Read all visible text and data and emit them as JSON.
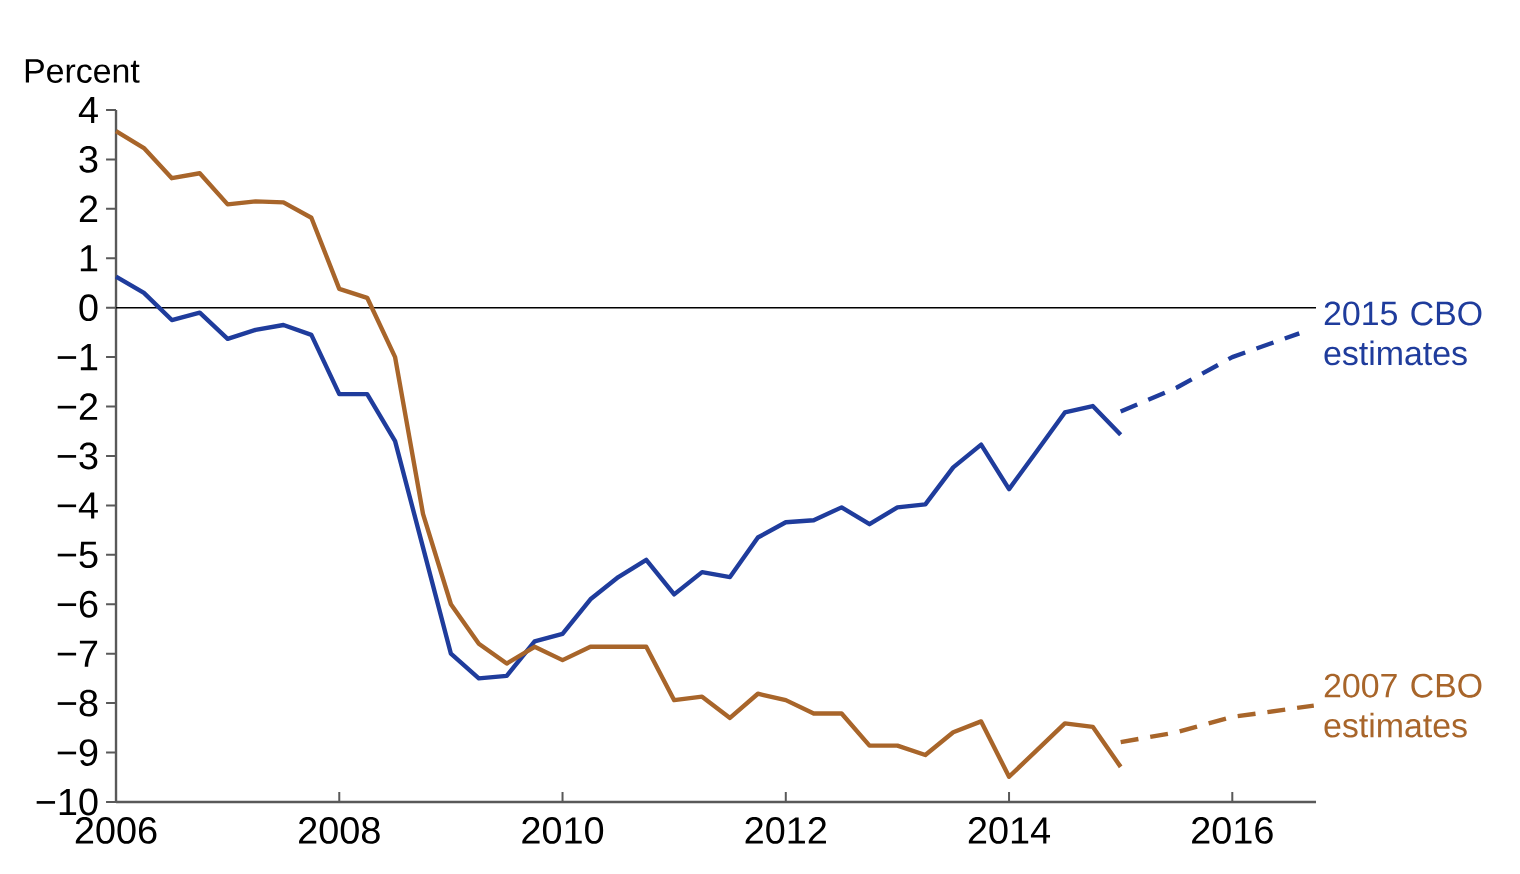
{
  "chart_data": {
    "type": "line",
    "ylabel": "Percent",
    "xlim": [
      2006,
      2016.75
    ],
    "ylim": [
      -10,
      4
    ],
    "xticks": [
      2006,
      2008,
      2010,
      2012,
      2014,
      2016
    ],
    "yticks": [
      {
        "value": -10,
        "label": "−10"
      },
      {
        "value": -9,
        "label": "−9"
      },
      {
        "value": -8,
        "label": "−8"
      },
      {
        "value": -7,
        "label": "−7"
      },
      {
        "value": -6,
        "label": "−6"
      },
      {
        "value": -5,
        "label": "−5"
      },
      {
        "value": -4,
        "label": "−4"
      },
      {
        "value": -3,
        "label": "−3"
      },
      {
        "value": -2,
        "label": "−2"
      },
      {
        "value": -1,
        "label": "−1"
      },
      0,
      1,
      2,
      3,
      4
    ],
    "grid": false,
    "marker": "none",
    "ref_lines": [
      {
        "axis": "y",
        "value": 0,
        "color": "#000000"
      }
    ],
    "series": [
      {
        "name": "2015 CBO estimates",
        "color": "#1f3c9c",
        "line_style": "solid",
        "x": [
          2006.0,
          2006.25,
          2006.5,
          2006.75,
          2007.0,
          2007.25,
          2007.5,
          2007.75,
          2008.0,
          2008.25,
          2008.5,
          2008.75,
          2009.0,
          2009.25,
          2009.5,
          2009.75,
          2010.0,
          2010.25,
          2010.5,
          2010.75,
          2011.0,
          2011.25,
          2011.5,
          2011.75,
          2012.0,
          2012.25,
          2012.5,
          2012.75,
          2013.0,
          2013.25,
          2013.5,
          2013.75,
          2014.0,
          2014.25,
          2014.5,
          2014.75,
          2015.0
        ],
        "values": [
          0.63,
          0.3,
          -0.25,
          -0.1,
          -0.63,
          -0.45,
          -0.35,
          -0.55,
          -1.75,
          -1.75,
          -2.7,
          -4.85,
          -7.0,
          -7.5,
          -7.45,
          -6.75,
          -6.6,
          -5.9,
          -5.45,
          -5.1,
          -5.8,
          -5.35,
          -5.45,
          -4.65,
          -4.34,
          -4.3,
          -4.04,
          -4.38,
          -4.04,
          -3.98,
          -3.23,
          -2.77,
          -3.67,
          -2.9,
          -2.12,
          -1.99,
          -2.57
        ]
      },
      {
        "color": "#1f3c9c",
        "line_style": "dashed",
        "x": [
          2015.0,
          2015.5,
          2016.0,
          2016.6
        ],
        "values": [
          -2.1,
          -1.62,
          -1.0,
          -0.52
        ]
      },
      {
        "name": "2007 CBO estimates",
        "color": "#a8652a",
        "line_style": "solid",
        "x": [
          2006.0,
          2006.25,
          2006.5,
          2006.75,
          2007.0,
          2007.25,
          2007.5,
          2007.75,
          2008.0,
          2008.25,
          2008.5,
          2008.75,
          2009.0,
          2009.25,
          2009.5,
          2009.75,
          2010.0,
          2010.25,
          2010.5,
          2010.75,
          2011.0,
          2011.25,
          2011.5,
          2011.75,
          2012.0,
          2012.25,
          2012.5,
          2012.75,
          2013.0,
          2013.25,
          2013.5,
          2013.75,
          2014.0,
          2014.25,
          2014.5,
          2014.75,
          2015.0
        ],
        "values": [
          3.57,
          3.23,
          2.62,
          2.72,
          2.09,
          2.15,
          2.13,
          1.82,
          0.38,
          0.2,
          -1.0,
          -4.17,
          -6.0,
          -6.8,
          -7.2,
          -6.86,
          -7.13,
          -6.86,
          -6.86,
          -6.86,
          -7.94,
          -7.87,
          -8.3,
          -7.81,
          -7.94,
          -8.21,
          -8.21,
          -8.86,
          -8.86,
          -9.05,
          -8.59,
          -8.37,
          -9.49,
          -8.95,
          -8.41,
          -8.48,
          -9.29
        ]
      },
      {
        "color": "#a8652a",
        "line_style": "dashed",
        "x": [
          2015.0,
          2015.5,
          2016.0,
          2016.73
        ],
        "values": [
          -8.79,
          -8.59,
          -8.28,
          -8.05
        ]
      }
    ]
  }
}
